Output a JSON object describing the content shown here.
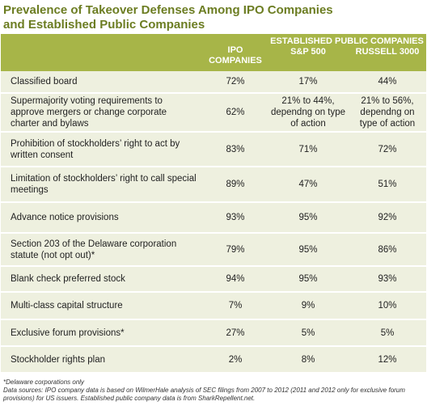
{
  "header": {
    "title_line_1": "Prevalence of Takeover Defenses Among IPO Companies",
    "title_line_2": "and Established Public Companies"
  },
  "table": {
    "columns": {
      "ipo": "IPO COMPANIES",
      "established": "ESTABLISHED PUBLIC COMPANIES",
      "sp500": "S&P 500",
      "russell": "RUSSELL 3000"
    },
    "rows": [
      [
        "Classified board",
        "72%",
        "17%",
        "44%"
      ],
      [
        "Supermajority voting requirements to approve mergers or change corporate charter and bylaws",
        "62%",
        "21% to 44%, dependng on type of action",
        "21% to 56%, dependng on type of action"
      ],
      [
        "Prohibition of stockholders’ right to act by written consent",
        "83%",
        "71%",
        "72%"
      ],
      [
        "Limitation of stockholders’ right to call special meetings",
        "89%",
        "47%",
        "51%"
      ],
      [
        "Advance notice provisions",
        "93%",
        "95%",
        "92%"
      ],
      [
        "Section 203 of the Delaware corporation statute (not opt out)*",
        "79%",
        "95%",
        "86%"
      ],
      [
        "Blank check preferred stock",
        "94%",
        "95%",
        "93%"
      ],
      [
        "Multi-class capital structure",
        "7%",
        "9%",
        "10%"
      ],
      [
        "Exclusive forum provisions*",
        "27%",
        "5%",
        "5%"
      ],
      [
        "Stockholder rights plan",
        "2%",
        "8%",
        "12%"
      ]
    ]
  },
  "footnotes": [
    "*Delaware corporations only",
    "Data sources: IPO company data is based on WilmerHale analysis of SEC filings from 2007 to 2012 (2011 and 2012 only for exclusive forum provisions) for US issuers. Established public company data is from SharkRepellent.net."
  ]
}
